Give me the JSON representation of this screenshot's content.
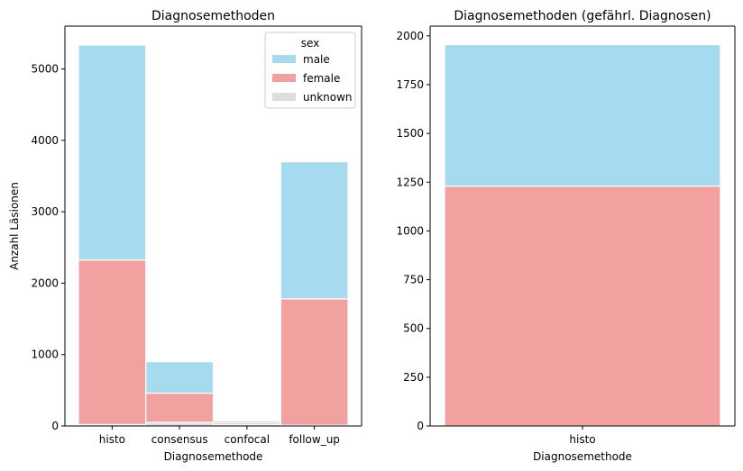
{
  "chart_data": [
    {
      "type": "bar",
      "stacked": true,
      "title": "Diagnosemethoden",
      "xlabel": "Diagnosemethode",
      "ylabel": "Anzahl Läsionen",
      "categories": [
        "histo",
        "consensus",
        "confocal",
        "follow_up"
      ],
      "series": [
        {
          "name": "male",
          "values": [
            3010,
            440,
            25,
            1920
          ]
        },
        {
          "name": "female",
          "values": [
            2305,
            410,
            24,
            1770
          ]
        },
        {
          "name": "unknown",
          "values": [
            20,
            50,
            20,
            10
          ]
        }
      ],
      "ylim": [
        0,
        5600
      ],
      "yticks": [
        0,
        1000,
        2000,
        3000,
        4000,
        5000
      ],
      "legend": {
        "title": "sex",
        "placement": "top-right"
      },
      "grid": false
    },
    {
      "type": "bar",
      "stacked": true,
      "title": "Diagnosemethoden (gefährl. Diagnosen)",
      "xlabel": "Diagnosemethode",
      "ylabel": "",
      "categories": [
        "histo"
      ],
      "series": [
        {
          "name": "male",
          "values": [
            725
          ]
        },
        {
          "name": "female",
          "values": [
            1230
          ]
        }
      ],
      "ylim": [
        0,
        2050
      ],
      "yticks": [
        0,
        250,
        500,
        750,
        1000,
        1250,
        1500,
        1750,
        2000
      ],
      "legend": null,
      "grid": false
    }
  ],
  "colors": {
    "male": "#a6daef",
    "female": "#f2a1a1",
    "unknown": "#dddddd",
    "edge": "#ffffff",
    "axis": "#000000"
  }
}
